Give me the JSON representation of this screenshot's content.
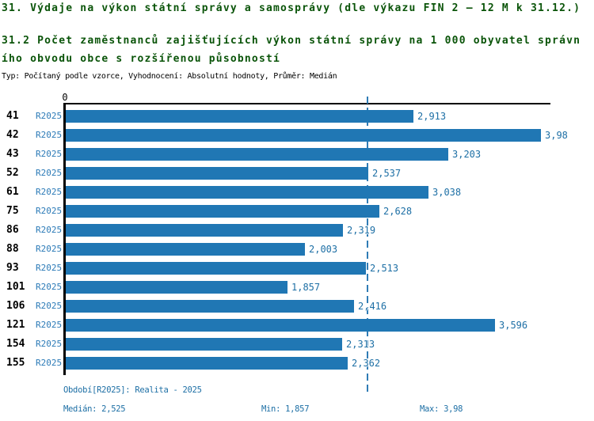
{
  "header": {
    "title": "31. Výdaje na výkon státní správy a samosprávy (dle výkazu FIN 2 – 12 M k 31.12.)",
    "subtitle_line1": "31.2 Počet zaměstnanců zajišťujících výkon státní správy na 1 000 obyvatel správn",
    "subtitle_line2": "ího obvodu obce s rozšířenou působností",
    "meta": "Typ: Počítaný podle vzorce, Vyhodnocení: Absolutní hodnoty, Průměr: Medián"
  },
  "chart_data": {
    "type": "bar",
    "orientation": "horizontal",
    "title": "31.2 Počet zaměstnanců zajišťujících výkon státní správy na 1 000 obyvatel správního obvodu obce s rozšířenou působností",
    "series_label": "R2025",
    "categories": [
      "41",
      "42",
      "43",
      "52",
      "61",
      "75",
      "86",
      "88",
      "93",
      "101",
      "106",
      "121",
      "154",
      "155"
    ],
    "values": [
      2.913,
      3.98,
      3.203,
      2.537,
      3.038,
      2.628,
      2.319,
      2.003,
      2.513,
      1.857,
      2.416,
      3.596,
      2.313,
      2.362
    ],
    "value_labels": [
      "2,913",
      "3,98",
      "3,203",
      "2,537",
      "3,038",
      "2,628",
      "2,319",
      "2,003",
      "2,513",
      "1,857",
      "2,416",
      "3,596",
      "2,313",
      "2,362"
    ],
    "x_zero_label": "0",
    "xlim": [
      0,
      4.07
    ],
    "grid": false,
    "legend_position": "none",
    "median": 2.525,
    "min": 1.857,
    "max": 3.98,
    "bar_color": "#2077b4",
    "median_line_color": "#2f7cb5"
  },
  "footer": {
    "period": "Období[R2025]: Realita - 2025",
    "median": "Medián: 2,525",
    "min": "Min: 1,857",
    "max": "Max: 3,98"
  }
}
